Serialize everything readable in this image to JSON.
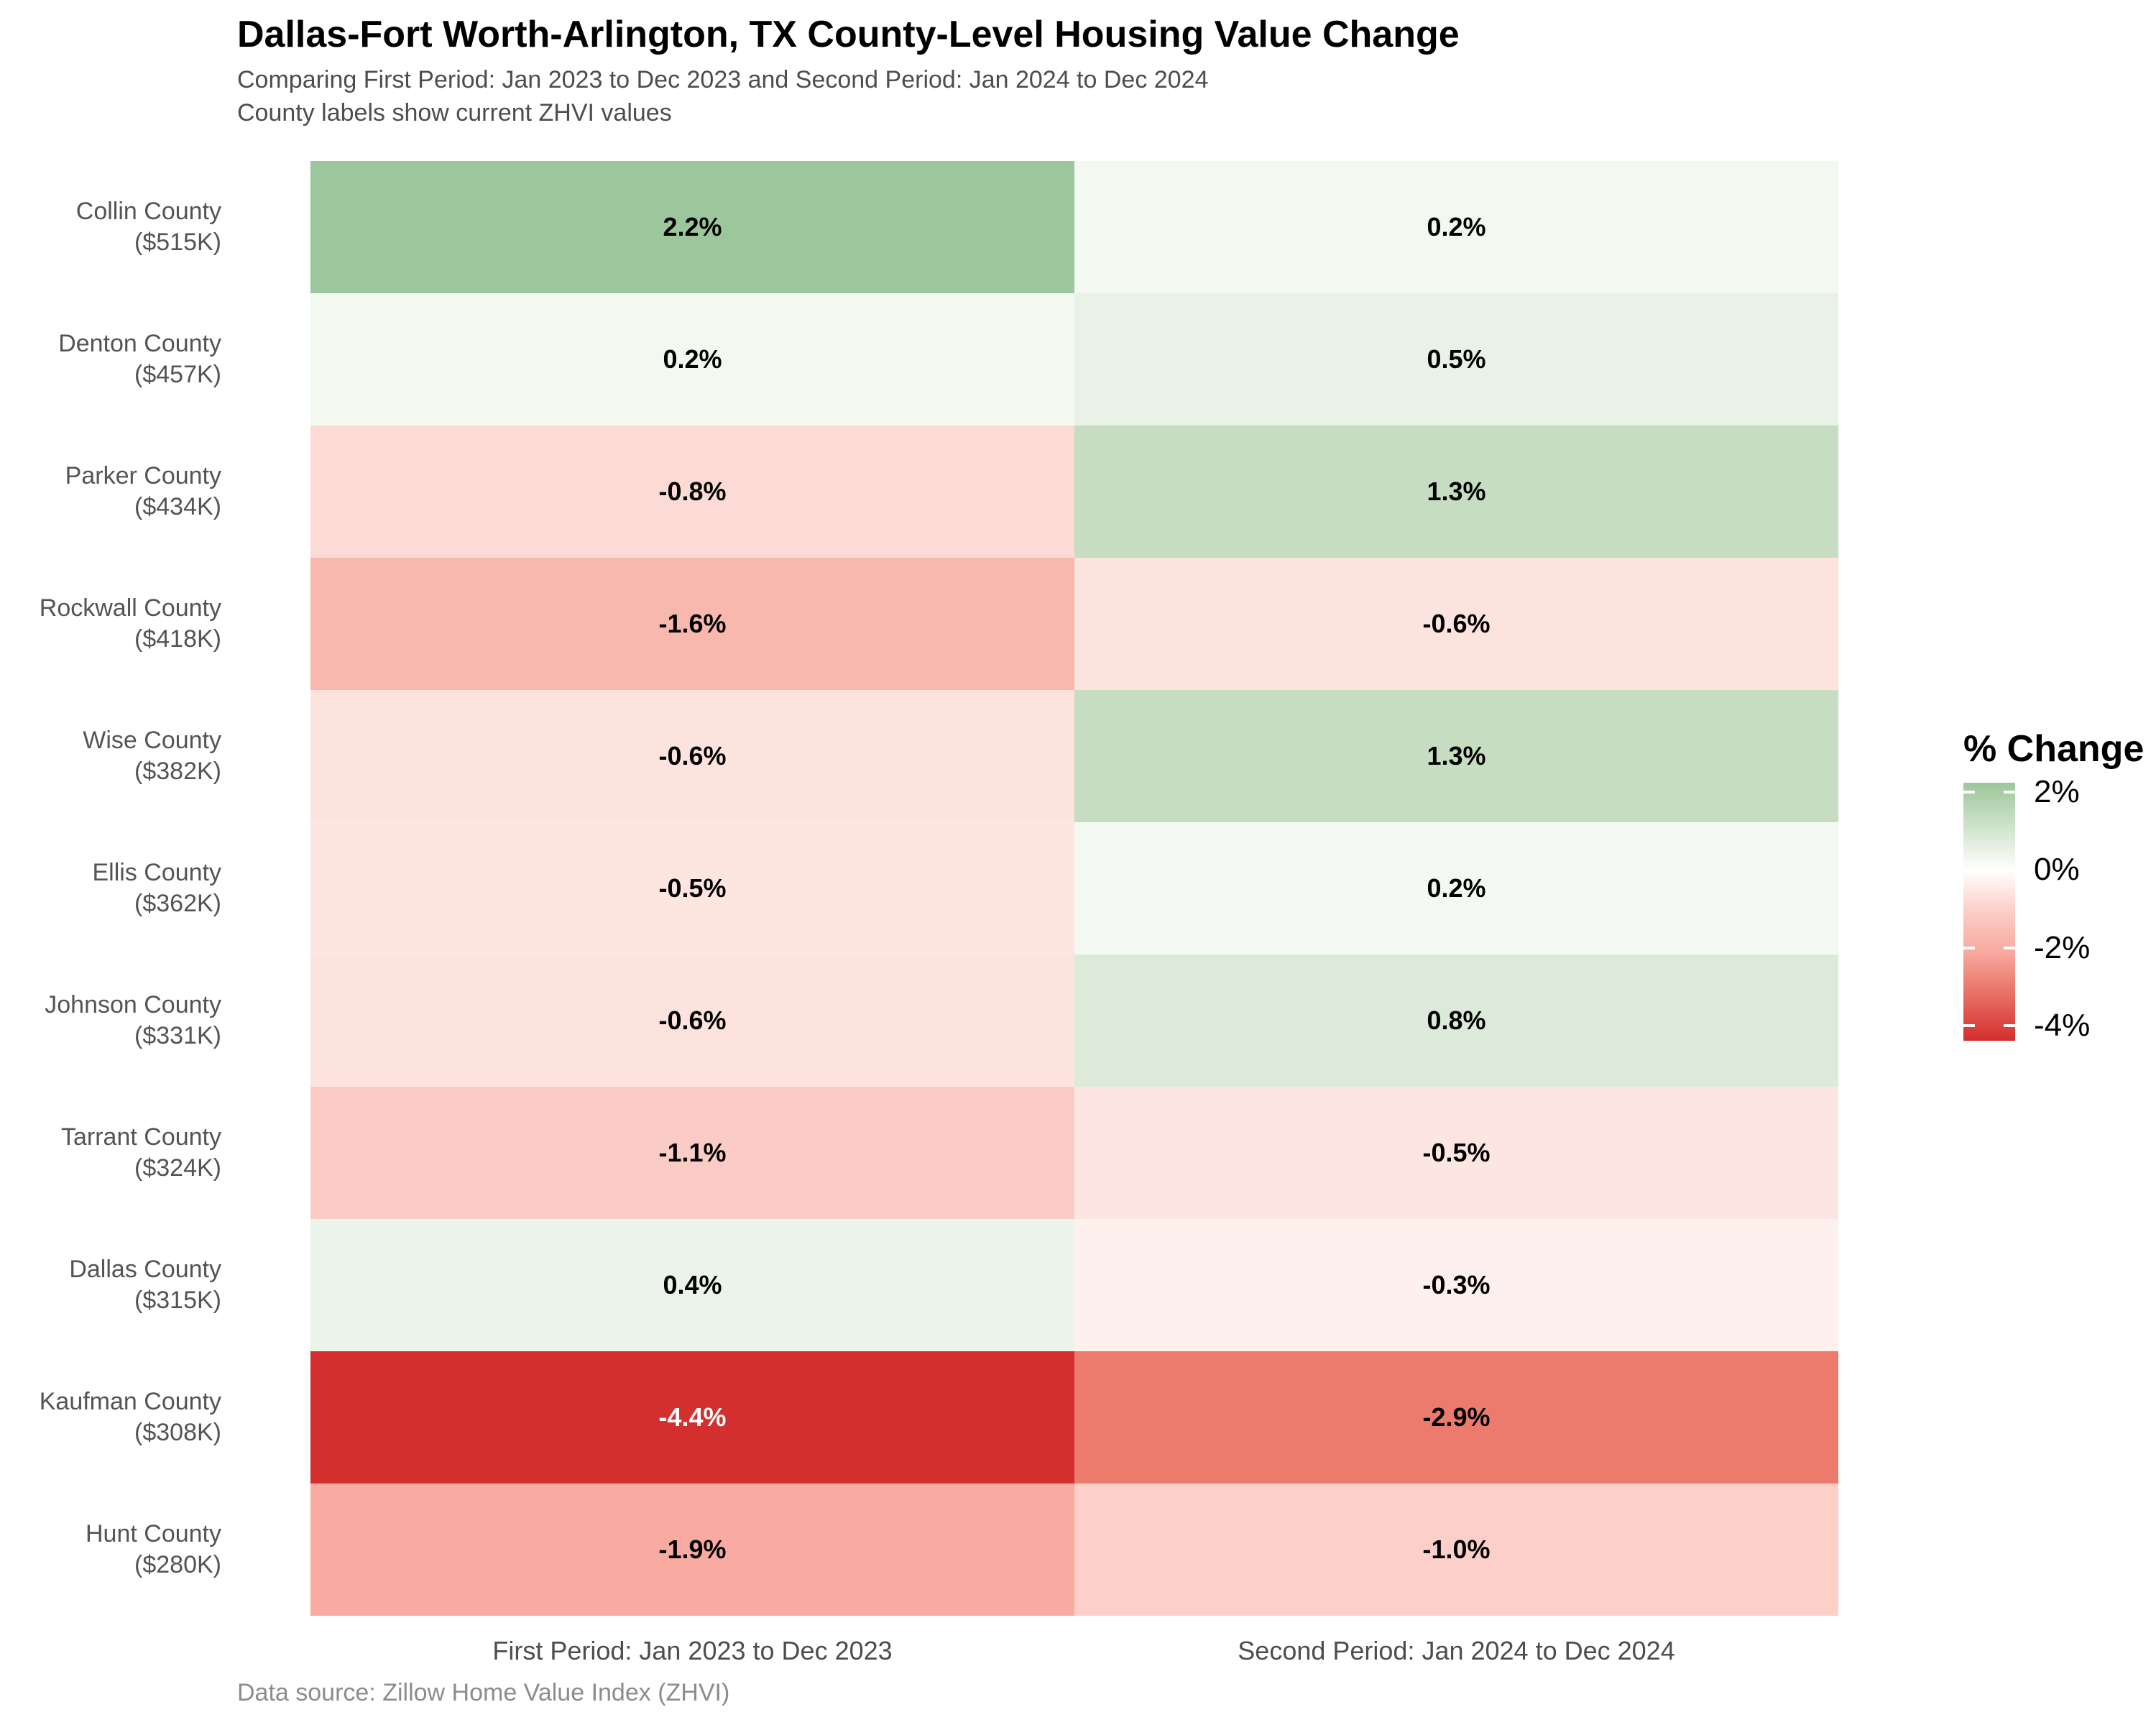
{
  "header": {
    "title": "Dallas-Fort Worth-Arlington, TX County-Level Housing Value Change",
    "subtitle_line1": "Comparing First Period: Jan 2023 to Dec 2023 and Second Period: Jan 2024 to Dec 2024",
    "subtitle_line2": "County labels show current ZHVI values"
  },
  "footer": {
    "caption": "Data source: Zillow Home Value Index (ZHVI)"
  },
  "legend": {
    "title": "% Change",
    "tick_labels": [
      "2%",
      "0%",
      "-2%",
      "-4%"
    ],
    "tick_offsets_pct": [
      3.6,
      33.7,
      64.1,
      94.2
    ]
  },
  "chart_data": {
    "type": "heatmap",
    "title": "Dallas-Fort Worth-Arlington, TX County-Level Housing Value Change",
    "subtitle": "Comparing First Period: Jan 2023 to Dec 2023 and Second Period: Jan 2024 to Dec 2024 — County labels show current ZHVI values",
    "unit": "%",
    "x_categories": [
      "First Period: Jan 2023 to Dec 2023",
      "Second Period: Jan 2024 to Dec 2024"
    ],
    "y_categories": [
      "Collin County ($515K)",
      "Denton County ($457K)",
      "Parker County ($434K)",
      "Rockwall County ($418K)",
      "Wise County ($382K)",
      "Ellis County ($362K)",
      "Johnson County ($331K)",
      "Tarrant County ($324K)",
      "Dallas County ($315K)",
      "Kaufman County ($308K)",
      "Hunt County ($280K)"
    ],
    "color_scale": {
      "legend_title": "% Change",
      "low_value": -4.4,
      "midpoint": 0,
      "high_value": 2.2,
      "low_color": "#d32f2e",
      "mid_color": "#ffffff",
      "high_color": "#9cc69b",
      "legend_ticks": [
        2,
        0,
        -2,
        -4
      ]
    },
    "rows": [
      {
        "county": "Collin County",
        "zhvi": "($515K)",
        "values": [
          2.2,
          0.2
        ],
        "labels": [
          "2.2%",
          "0.2%"
        ],
        "cell_colors": [
          "#9cc69b",
          "#f3f8f1"
        ],
        "text_colors": [
          "#000000",
          "#000000"
        ]
      },
      {
        "county": "Denton County",
        "zhvi": "($457K)",
        "values": [
          0.2,
          0.5
        ],
        "labels": [
          "0.2%",
          "0.5%"
        ],
        "cell_colors": [
          "#f3f8f1",
          "#eaf2e8"
        ],
        "text_colors": [
          "#000000",
          "#000000"
        ]
      },
      {
        "county": "Parker County",
        "zhvi": "($434K)",
        "values": [
          -0.8,
          1.3
        ],
        "labels": [
          "-0.8%",
          "1.3%"
        ],
        "cell_colors": [
          "#fcdbd6",
          "#c6ddc2"
        ],
        "text_colors": [
          "#000000",
          "#000000"
        ]
      },
      {
        "county": "Rockwall County",
        "zhvi": "($418K)",
        "values": [
          -1.6,
          -0.6
        ],
        "labels": [
          "-1.6%",
          "-0.6%"
        ],
        "cell_colors": [
          "#f9b8ae",
          "#fde3dd"
        ],
        "text_colors": [
          "#000000",
          "#000000"
        ]
      },
      {
        "county": "Wise County",
        "zhvi": "($382K)",
        "values": [
          -0.6,
          1.3
        ],
        "labels": [
          "-0.6%",
          "1.3%"
        ],
        "cell_colors": [
          "#fde3dd",
          "#c6ddc2"
        ],
        "text_colors": [
          "#000000",
          "#000000"
        ]
      },
      {
        "county": "Ellis County",
        "zhvi": "($362K)",
        "values": [
          -0.5,
          0.2
        ],
        "labels": [
          "-0.5%",
          "0.2%"
        ],
        "cell_colors": [
          "#fde5e0",
          "#f4f9f3"
        ],
        "text_colors": [
          "#000000",
          "#000000"
        ]
      },
      {
        "county": "Johnson County",
        "zhvi": "($331K)",
        "values": [
          -0.6,
          0.8
        ],
        "labels": [
          "-0.6%",
          "0.8%"
        ],
        "cell_colors": [
          "#fde3dd",
          "#dcebd9"
        ],
        "text_colors": [
          "#000000",
          "#000000"
        ]
      },
      {
        "county": "Tarrant County",
        "zhvi": "($324K)",
        "values": [
          -1.1,
          -0.5
        ],
        "labels": [
          "-1.1%",
          "-0.5%"
        ],
        "cell_colors": [
          "#fbccc5",
          "#fde6e1"
        ],
        "text_colors": [
          "#000000",
          "#000000"
        ]
      },
      {
        "county": "Dallas County",
        "zhvi": "($315K)",
        "values": [
          0.4,
          -0.3
        ],
        "labels": [
          "0.4%",
          "-0.3%"
        ],
        "cell_colors": [
          "#ecf3ea",
          "#fef0ed"
        ],
        "text_colors": [
          "#000000",
          "#000000"
        ]
      },
      {
        "county": "Kaufman County",
        "zhvi": "($308K)",
        "values": [
          -4.4,
          -2.9
        ],
        "labels": [
          "-4.4%",
          "-2.9%"
        ],
        "cell_colors": [
          "#d32f2e",
          "#ec7a6d"
        ],
        "text_colors": [
          "#ffffff",
          "#000000"
        ]
      },
      {
        "county": "Hunt County",
        "zhvi": "($280K)",
        "values": [
          -1.9,
          -1.0
        ],
        "labels": [
          "-1.9%",
          "-1.0%"
        ],
        "cell_colors": [
          "#faaba1",
          "#fcd0c9"
        ],
        "text_colors": [
          "#000000",
          "#000000"
        ]
      }
    ]
  }
}
